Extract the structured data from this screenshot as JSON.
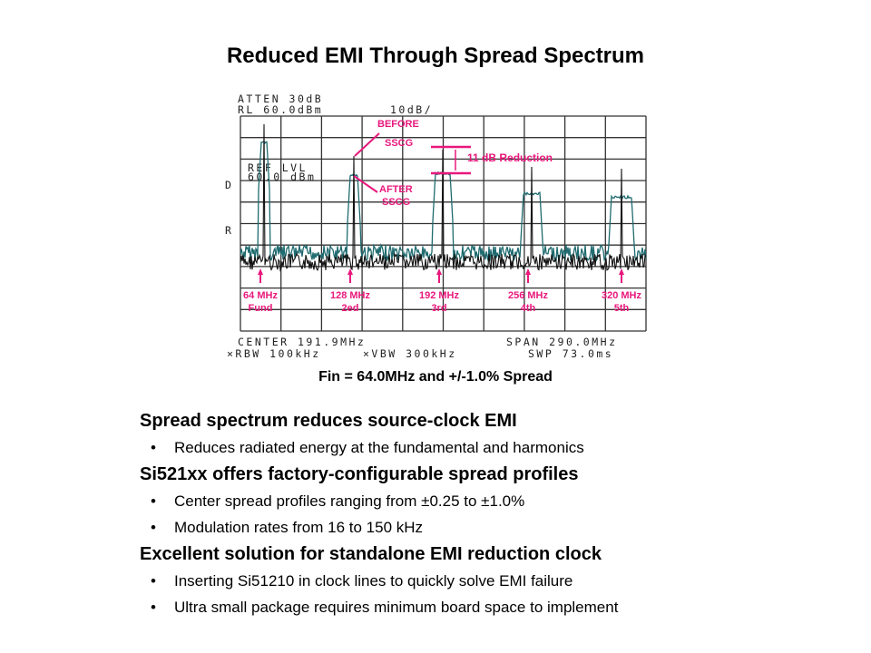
{
  "title": "Reduced EMI Through Spread Spectrum",
  "spectrum": {
    "atten": "ATTEN 30dB",
    "rl": "RL 60.0dBm",
    "scale": "10dB/",
    "ref_lvl_1": "REF LVL",
    "ref_lvl_2": "60.0 dBm",
    "side_d": "D",
    "side_r": "R",
    "before_1": "BEFORE",
    "before_2": "SSCG",
    "after_1": "AFTER",
    "after_2": "SSCG",
    "reduction": "11 dB Reduction",
    "harmonics": [
      {
        "freq": "64 MHz",
        "name": "Fund"
      },
      {
        "freq": "128 MHz",
        "name": "2ed"
      },
      {
        "freq": "192 MHz",
        "name": "3rd"
      },
      {
        "freq": "256 MHz",
        "name": "4th"
      },
      {
        "freq": "320 MHz",
        "name": "5th"
      }
    ],
    "center": "CENTER 191.9MHz",
    "span": "SPAN 290.0MHz",
    "rbw": "×RBW 100kHz",
    "vbw": "×VBW 300kHz",
    "swp": "SWP 73.0ms",
    "colors": {
      "before": "#111111",
      "after": "#1f6b70",
      "annotation": "#e8187c"
    }
  },
  "caption": "Fin = 64.0MHz and +/-1.0% Spread",
  "sections": [
    {
      "heading": "Spread spectrum reduces source-clock EMI",
      "items": [
        "Reduces radiated energy at the fundamental  and harmonics"
      ]
    },
    {
      "heading": "Si521xx offers factory-configurable spread profiles",
      "items": [
        "Center spread profiles ranging from ±0.25 to ±1.0%",
        "Modulation rates from 16 to 150 kHz"
      ]
    },
    {
      "heading": "Excellent solution for standalone EMI reduction clock",
      "items": [
        "Inserting Si51210 in clock lines to quickly solve EMI failure",
        "Ultra small package requires minimum  board space to implement"
      ]
    }
  ]
}
